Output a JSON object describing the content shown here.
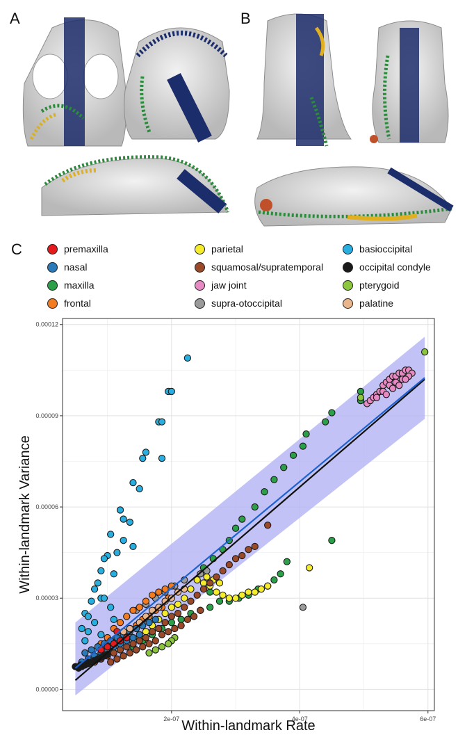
{
  "panels": {
    "a": "A",
    "b": "B",
    "c": "C"
  },
  "legend": [
    {
      "label": "premaxilla",
      "color": "#e41a1c"
    },
    {
      "label": "nasal",
      "color": "#2a79b8"
    },
    {
      "label": "maxilla",
      "color": "#2ca048"
    },
    {
      "label": "frontal",
      "color": "#f47c20"
    },
    {
      "label": "parietal",
      "color": "#f5ec2b"
    },
    {
      "label": "squamosal/supratemporal",
      "color": "#9a4a28"
    },
    {
      "label": "jaw joint",
      "color": "#e78ac3"
    },
    {
      "label": "supra-otoccipital",
      "color": "#9a9a9a"
    },
    {
      "label": "basioccipital",
      "color": "#29aee0"
    },
    {
      "label": "occipital condyle",
      "color": "#1a1a1a"
    },
    {
      "label": "pterygoid",
      "color": "#8cc63f"
    },
    {
      "label": "palatine",
      "color": "#e8b58c"
    }
  ],
  "chart_data": {
    "type": "scatter",
    "xlabel": "Within-landmark Rate",
    "ylabel": "Within-landmark Variance",
    "xlim": [
      3e-08,
      6.1e-07
    ],
    "ylim": [
      -7e-06,
      0.000122
    ],
    "xticks": [
      "2e-07",
      "4e-07",
      "6e-07"
    ],
    "xtick_values": [
      2e-07,
      4e-07,
      6e-07
    ],
    "yticks": [
      "0.00000",
      "0.00003",
      "0.00006",
      "0.00009",
      "0.00012"
    ],
    "ytick_values": [
      0,
      3e-05,
      6e-05,
      9e-05,
      0.00012
    ],
    "grid": true,
    "band": {
      "color": "#b3b3f5",
      "x": [
        5e-08,
        5.95e-07
      ],
      "lower": [
        -2e-06,
        8.9e-05
      ],
      "upper": [
        2.2e-05,
        0.000116
      ]
    },
    "lines": [
      {
        "color": "#111111",
        "x": [
          5e-08,
          5.95e-07
        ],
        "y": [
          3e-06,
          0.000102
        ]
      },
      {
        "color": "#1e62d0",
        "x": [
          5e-08,
          5.95e-07
        ],
        "y": [
          7e-06,
          0.0001025
        ]
      }
    ],
    "series": [
      {
        "name": "basioccipital",
        "color": "#29aee0",
        "x": [
          2.25e-07,
          1.95e-07,
          2e-07,
          1.8e-07,
          1.85e-07,
          1.6e-07,
          1.55e-07,
          1.85e-07,
          1.4e-07,
          1.5e-07,
          1.2e-07,
          1.25e-07,
          1.35e-07,
          1.05e-07,
          1.25e-07,
          1.4e-07,
          1.15e-07,
          1e-07,
          9.5e-08,
          9e-08,
          1.1e-07,
          8.5e-08,
          8e-08,
          9e-08,
          7.5e-08,
          9.5e-08,
          1.05e-07,
          6.5e-08,
          7e-08,
          8e-08,
          6e-08,
          7e-08,
          9e-08,
          6.5e-08,
          1.1e-07
        ],
        "y": [
          0.000109,
          9.8e-05,
          9.8e-05,
          8.8e-05,
          8.8e-05,
          7.8e-05,
          7.6e-05,
          7.6e-05,
          6.8e-05,
          6.6e-05,
          5.9e-05,
          5.6e-05,
          5.5e-05,
          5.1e-05,
          4.9e-05,
          4.7e-05,
          4.5e-05,
          4.4e-05,
          4.3e-05,
          3.9e-05,
          3.8e-05,
          3.5e-05,
          3.3e-05,
          3e-05,
          2.9e-05,
          3e-05,
          2.7e-05,
          2.5e-05,
          2.4e-05,
          2.2e-05,
          2e-05,
          1.9e-05,
          1.8e-05,
          1.6e-05,
          2.3e-05
        ]
      },
      {
        "name": "jaw joint",
        "color": "#e78ac3",
        "x": [
          5.05e-07,
          5.1e-07,
          5.15e-07,
          5.2e-07,
          5.25e-07,
          5.3e-07,
          5.35e-07,
          5.4e-07,
          5.45e-07,
          5.5e-07,
          5.55e-07,
          5.6e-07,
          5.65e-07,
          5.7e-07,
          5.75e-07,
          5.3e-07,
          5.4e-07,
          5.5e-07,
          5.6e-07,
          5.7e-07,
          5.2e-07,
          5.45e-07,
          5.55e-07,
          5.65e-07,
          5.35e-07
        ],
        "y": [
          9.4e-05,
          9.5e-05,
          9.6e-05,
          9.7e-05,
          9.8e-05,
          0.0001,
          0.000101,
          0.000102,
          0.000103,
          0.000103,
          0.000104,
          0.000104,
          0.000105,
          0.000105,
          0.000104,
          9.8e-05,
          0.0001,
          0.000101,
          0.000102,
          0.000103,
          9.6e-05,
          9.9e-05,
          0.0001,
          0.000102,
          9.7e-05
        ]
      },
      {
        "name": "maxilla",
        "color": "#2ca048",
        "x": [
          4.5e-07,
          4.4e-07,
          4.1e-07,
          4.05e-07,
          3.9e-07,
          3.75e-07,
          3.6e-07,
          3.45e-07,
          3.3e-07,
          3.1e-07,
          3e-07,
          2.9e-07,
          2.8e-07,
          2.65e-07,
          2.5e-07,
          4.5e-07,
          3.8e-07,
          3.7e-07,
          3.6e-07,
          3.5e-07,
          3.35e-07,
          3.2e-07,
          3.05e-07,
          2.9e-07,
          2.75e-07,
          2.6e-07,
          2.45e-07,
          2.3e-07,
          2.15e-07,
          2e-07,
          1.85e-07,
          4.95e-07,
          4.95e-07,
          1.7e-07,
          1.55e-07,
          1.4e-07,
          2.6e-07
        ],
        "y": [
          9.1e-05,
          8.8e-05,
          8.4e-05,
          8e-05,
          7.7e-05,
          7.3e-05,
          6.9e-05,
          6.5e-05,
          6e-05,
          5.6e-05,
          5.3e-05,
          4.9e-05,
          4.6e-05,
          4.3e-05,
          4e-05,
          4.9e-05,
          4.2e-05,
          3.8e-05,
          3.6e-05,
          3.4e-05,
          3.3e-05,
          3.1e-05,
          3e-05,
          2.9e-05,
          2.9e-05,
          2.7e-05,
          2.6e-05,
          2.5e-05,
          2.3e-05,
          2.2e-05,
          2e-05,
          9.8e-05,
          9.5e-05,
          1.8e-05,
          1.6e-05,
          1.4e-05,
          3.2e-05
        ]
      },
      {
        "name": "parietal",
        "color": "#f5ec2b",
        "x": [
          4.15e-07,
          3.5e-07,
          3.4e-07,
          3.3e-07,
          3.2e-07,
          3.1e-07,
          3e-07,
          2.9e-07,
          2.8e-07,
          2.7e-07,
          2.6e-07,
          2.5e-07,
          2.4e-07,
          2.3e-07,
          2.2e-07,
          2.1e-07,
          2e-07,
          1.9e-07,
          1.8e-07,
          1.7e-07,
          2.55e-07,
          2.65e-07,
          2.75e-07,
          1.6e-07,
          1.5e-07
        ],
        "y": [
          4e-05,
          3.4e-05,
          3.3e-05,
          3.2e-05,
          3.2e-05,
          3.1e-05,
          3e-05,
          3e-05,
          3.1e-05,
          3.2e-05,
          3.4e-05,
          3.5e-05,
          3.6e-05,
          3.3e-05,
          3e-05,
          2.8e-05,
          2.7e-05,
          2.5e-05,
          2.3e-05,
          2.1e-05,
          3.7e-05,
          3.6e-05,
          3.5e-05,
          1.9e-05,
          1.7e-05
        ]
      },
      {
        "name": "supra-otoccipital",
        "color": "#9a9a9a",
        "x": [
          4.05e-07,
          2.2e-07,
          2.05e-07,
          1.9e-07,
          1.75e-07,
          2.45e-07,
          2.55e-07,
          1.6e-07,
          1.45e-07
        ],
        "y": [
          2.7e-05,
          3.6e-05,
          3.4e-05,
          3.2e-05,
          3e-05,
          3.8e-05,
          3.9e-05,
          2.8e-05,
          2.6e-05
        ]
      },
      {
        "name": "squamosal/supratemporal",
        "color": "#9a4a28",
        "x": [
          3.5e-07,
          3.3e-07,
          3.2e-07,
          3.1e-07,
          3e-07,
          2.9e-07,
          2.8e-07,
          2.7e-07,
          2.6e-07,
          2.5e-07,
          2.4e-07,
          2.3e-07,
          2.2e-07,
          2.1e-07,
          2e-07,
          1.9e-07,
          1.8e-07,
          1.7e-07,
          1.6e-07,
          1.5e-07,
          1.4e-07,
          1.3e-07,
          1.2e-07,
          1.1e-07,
          1e-07,
          9e-08,
          8e-08,
          2.45e-07,
          2.35e-07,
          2.25e-07,
          2.15e-07,
          2.05e-07,
          1.95e-07,
          1.85e-07,
          1.75e-07,
          1.65e-07,
          1.55e-07,
          1.45e-07,
          1.35e-07,
          1.25e-07,
          1.15e-07,
          1.05e-07
        ],
        "y": [
          5.4e-05,
          4.7e-05,
          4.6e-05,
          4.4e-05,
          4.3e-05,
          4.1e-05,
          3.9e-05,
          3.7e-05,
          3.5e-05,
          3.3e-05,
          3.1e-05,
          2.9e-05,
          2.7e-05,
          2.5e-05,
          2.4e-05,
          2.2e-05,
          2e-05,
          1.9e-05,
          1.7e-05,
          1.6e-05,
          1.5e-05,
          1.4e-05,
          1.3e-05,
          1.2e-05,
          1.1e-05,
          1e-05,
          9e-06,
          2.6e-05,
          2.4e-05,
          2.3e-05,
          2.1e-05,
          2e-05,
          1.9e-05,
          1.8e-05,
          1.6e-05,
          1.5e-05,
          1.4e-05,
          1.3e-05,
          1.2e-05,
          1.1e-05,
          1e-05,
          9e-06
        ]
      },
      {
        "name": "frontal",
        "color": "#f47c20",
        "x": [
          1.1e-07,
          1.2e-07,
          1.3e-07,
          1.4e-07,
          1.5e-07,
          1.6e-07,
          1.7e-07,
          1.8e-07,
          1.9e-07,
          2e-07,
          1.25e-07,
          1.35e-07,
          1.45e-07,
          1.55e-07,
          1.65e-07,
          1.75e-07,
          1.85e-07,
          9e-08,
          1e-07,
          1.15e-07,
          1.05e-07,
          1.95e-07
        ],
        "y": [
          2e-05,
          2.2e-05,
          2.4e-05,
          2.6e-05,
          2.7e-05,
          2.9e-05,
          3.1e-05,
          3.2e-05,
          3.3e-05,
          3.4e-05,
          1.8e-05,
          2e-05,
          2.1e-05,
          2.3e-05,
          2.4e-05,
          2.6e-05,
          2.7e-05,
          1.5e-05,
          1.7e-05,
          1.6e-05,
          1.4e-05,
          3e-05
        ]
      },
      {
        "name": "nasal",
        "color": "#2a79b8",
        "x": [
          6e-08,
          7e-08,
          8e-08,
          9e-08,
          1e-07,
          1.1e-07,
          1.2e-07,
          1.3e-07,
          1.4e-07,
          1.5e-07,
          6.5e-08,
          7.5e-08,
          8.5e-08,
          9.5e-08,
          1.05e-07,
          1.15e-07,
          1.25e-07,
          1.35e-07,
          1.45e-07,
          1.55e-07,
          1.65e-07,
          1.75e-07
        ],
        "y": [
          9e-06,
          1e-05,
          1.1e-05,
          1.2e-05,
          1.3e-05,
          1.4e-05,
          1.5e-05,
          1.6e-05,
          1.7e-05,
          1.8e-05,
          1.2e-05,
          1.3e-05,
          1.4e-05,
          1.5e-05,
          1.6e-05,
          1.7e-05,
          1.8e-05,
          1.9e-05,
          2e-05,
          2.1e-05,
          2.2e-05,
          2.3e-05
        ]
      },
      {
        "name": "palatine",
        "color": "#e8b58c",
        "x": [
          1.5e-07,
          1.6e-07,
          1.7e-07,
          1.8e-07,
          1.9e-07,
          2e-07,
          2.1e-07,
          2.2e-07,
          1.35e-07,
          1.25e-07
        ],
        "y": [
          2.2e-05,
          2.4e-05,
          2.6e-05,
          2.7e-05,
          2.9e-05,
          3e-05,
          3.2e-05,
          3.3e-05,
          2e-05,
          1.9e-05
        ]
      },
      {
        "name": "pterygoid",
        "color": "#8cc63f",
        "x": [
          5.95e-07,
          4.95e-07,
          2.05e-07,
          2e-07,
          1.95e-07,
          1.85e-07,
          1.75e-07,
          1.65e-07
        ],
        "y": [
          0.000111,
          9.6e-05,
          1.7e-05,
          1.6e-05,
          1.5e-05,
          1.4e-05,
          1.3e-05,
          1.2e-05
        ]
      },
      {
        "name": "premaxilla",
        "color": "#e41a1c",
        "x": [
          9e-08,
          1e-07,
          1.1e-07,
          1.2e-07,
          1.3e-07,
          1.15e-07
        ],
        "y": [
          1.3e-05,
          1.4e-05,
          1.5e-05,
          1.6e-05,
          1.7e-05,
          1.9e-05
        ]
      },
      {
        "name": "occipital condyle",
        "color": "#1a1a1a",
        "x": [
          5.5e-08,
          6e-08,
          6.5e-08,
          7e-08,
          7.5e-08,
          8e-08,
          8.5e-08,
          9e-08,
          9.5e-08,
          1e-07,
          5e-08,
          5.8e-08,
          6.8e-08
        ],
        "y": [
          7e-06,
          7.5e-06,
          8e-06,
          8.5e-06,
          9e-06,
          9.5e-06,
          1e-05,
          1.05e-05,
          1.1e-05,
          1.15e-05,
          7.5e-06,
          8e-06,
          9e-06
        ]
      }
    ]
  }
}
